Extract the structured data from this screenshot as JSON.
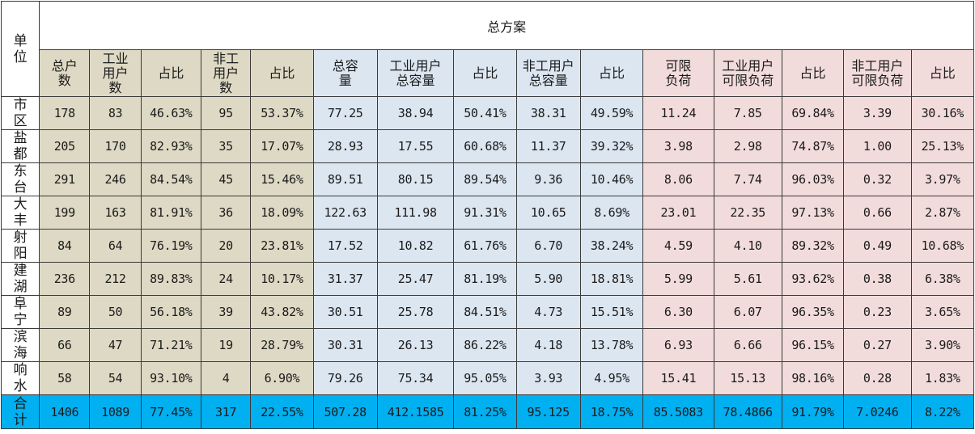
{
  "table": {
    "title": "总方案",
    "unit_header": "单位",
    "headers": [
      "总户数",
      "工业用户数",
      "占比",
      "非工用户数",
      "占比",
      "总容量",
      "工业用户总容量",
      "占比",
      "非工用户总容量",
      "占比",
      "可限负荷",
      "工业用户可限负荷",
      "占比",
      "非工用户可限负荷",
      "占比"
    ],
    "header_groups": [
      "olive",
      "olive",
      "olive",
      "olive",
      "olive",
      "blue",
      "blue",
      "blue",
      "blue",
      "blue",
      "pink",
      "pink",
      "pink",
      "pink",
      "pink"
    ],
    "group_colors": {
      "olive": "#ddd9c4",
      "blue": "#dce6f1",
      "pink": "#f2dcdb",
      "total": "#00b0f0"
    },
    "rows": [
      {
        "unit": "市区",
        "values": [
          "178",
          "83",
          "46.63%",
          "95",
          "53.37%",
          "77.25",
          "38.94",
          "50.41%",
          "38.31",
          "49.59%",
          "11.24",
          "7.85",
          "69.84%",
          "3.39",
          "30.16%"
        ]
      },
      {
        "unit": "盐都",
        "values": [
          "205",
          "170",
          "82.93%",
          "35",
          "17.07%",
          "28.93",
          "17.55",
          "60.68%",
          "11.37",
          "39.32%",
          "3.98",
          "2.98",
          "74.87%",
          "1.00",
          "25.13%"
        ]
      },
      {
        "unit": "东台",
        "values": [
          "291",
          "246",
          "84.54%",
          "45",
          "15.46%",
          "89.51",
          "80.15",
          "89.54%",
          "9.36",
          "10.46%",
          "8.06",
          "7.74",
          "96.03%",
          "0.32",
          "3.97%"
        ]
      },
      {
        "unit": "大丰",
        "values": [
          "199",
          "163",
          "81.91%",
          "36",
          "18.09%",
          "122.63",
          "111.98",
          "91.31%",
          "10.65",
          "8.69%",
          "23.01",
          "22.35",
          "97.13%",
          "0.66",
          "2.87%"
        ]
      },
      {
        "unit": "射阳",
        "values": [
          "84",
          "64",
          "76.19%",
          "20",
          "23.81%",
          "17.52",
          "10.82",
          "61.76%",
          "6.70",
          "38.24%",
          "4.59",
          "4.10",
          "89.32%",
          "0.49",
          "10.68%"
        ]
      },
      {
        "unit": "建湖",
        "values": [
          "236",
          "212",
          "89.83%",
          "24",
          "10.17%",
          "31.37",
          "25.47",
          "81.19%",
          "5.90",
          "18.81%",
          "5.99",
          "5.61",
          "93.62%",
          "0.38",
          "6.38%"
        ]
      },
      {
        "unit": "阜宁",
        "values": [
          "89",
          "50",
          "56.18%",
          "39",
          "43.82%",
          "30.51",
          "25.78",
          "84.51%",
          "4.73",
          "15.51%",
          "6.30",
          "6.07",
          "96.35%",
          "0.23",
          "3.65%"
        ]
      },
      {
        "unit": "滨海",
        "values": [
          "66",
          "47",
          "71.21%",
          "19",
          "28.79%",
          "30.31",
          "26.13",
          "86.22%",
          "4.18",
          "13.78%",
          "6.93",
          "6.66",
          "96.15%",
          "0.27",
          "3.90%"
        ]
      },
      {
        "unit": "响水",
        "values": [
          "58",
          "54",
          "93.10%",
          "4",
          "6.90%",
          "79.26",
          "75.34",
          "95.05%",
          "3.93",
          "4.95%",
          "15.41",
          "15.13",
          "98.16%",
          "0.28",
          "1.83%"
        ]
      }
    ],
    "total": {
      "unit": "合计",
      "values": [
        "1406",
        "1089",
        "77.45%",
        "317",
        "22.55%",
        "507.28",
        "412.1585",
        "81.25%",
        "95.125",
        "18.75%",
        "85.5083",
        "78.4866",
        "91.79%",
        "7.0246",
        "8.22%"
      ]
    }
  }
}
